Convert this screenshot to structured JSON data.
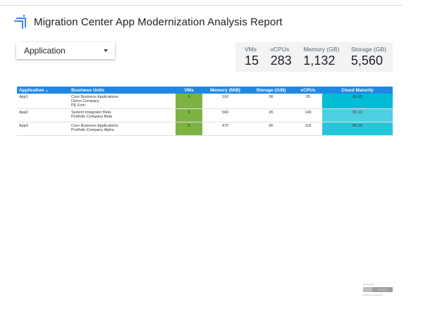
{
  "header": {
    "title": "Migration Center App Modernization Analysis Report"
  },
  "filter": {
    "label": "Application"
  },
  "kpis": [
    {
      "label": "VMs",
      "value": "15"
    },
    {
      "label": "vCPUs",
      "value": "283"
    },
    {
      "label": "Memory (GB)",
      "value": "1,132"
    },
    {
      "label": "Storage (GB)",
      "value": "5,560"
    }
  ],
  "table": {
    "columns": [
      "Application",
      "Business Units",
      "VMs",
      "Memory (MiB)",
      "Storage (GiB)",
      "vCPUs",
      "Cloud Maturity"
    ],
    "sort_indicator": "▲",
    "rows": [
      {
        "application": "App1",
        "business_units": [
          "Core Business Applications",
          "Demo Company",
          "PE Firm"
        ],
        "vms": "5",
        "memory": "100",
        "storage": "2K",
        "vcpus": "25",
        "cloud_maturity": "81.65",
        "cloud_maturity_color": "#00bcd4"
      },
      {
        "application": "App2",
        "business_units": [
          "System Integrator Beta",
          "Portfolio Company Beta"
        ],
        "vms": "5",
        "memory": "560",
        "storage": "2K",
        "vcpus": "140",
        "cloud_maturity": "59.12",
        "cloud_maturity_color": "#4dd0e1"
      },
      {
        "application": "App3",
        "business_units": [
          "Core Business Applications",
          "Portfolio Company Alpha"
        ],
        "vms": "5",
        "memory": "472",
        "storage": "2K",
        "vcpus": "118",
        "cloud_maturity": "69.16",
        "cloud_maturity_color": "#26c6da"
      }
    ]
  },
  "colors": {
    "header_blue": "#1e88e5",
    "vm_green": "#7cb342",
    "kpi_bg": "#f1f3f4"
  },
  "badge": {
    "top": "Powered by",
    "brand": "CAST",
    "bottom": "Software Intelligence"
  }
}
